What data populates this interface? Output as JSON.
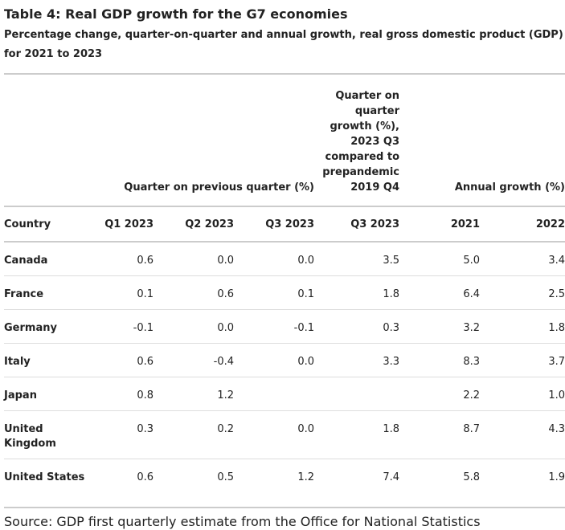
{
  "title": "Table 4: Real GDP growth for the G7 economies",
  "subtitle": "Percentage change, quarter-on-quarter and annual growth, real gross domestic product (GDP) for 2021 to 2023",
  "group_headers": {
    "quarter_on_previous": "Quarter on previous quarter (%)",
    "compared_prepandemic": "Quarter on quarter growth (%), 2023 Q3 compared to prepandemic 2019 Q4",
    "annual_growth": "Annual growth (%)"
  },
  "columns": [
    "Country",
    "Q1 2023",
    "Q2 2023",
    "Q3 2023",
    "Q3 2023",
    "2021",
    "2022"
  ],
  "rows": [
    {
      "country": "Canada",
      "values": [
        "0.6",
        "0.0",
        "0.0",
        "3.5",
        "5.0",
        "3.4"
      ]
    },
    {
      "country": "France",
      "values": [
        "0.1",
        "0.6",
        "0.1",
        "1.8",
        "6.4",
        "2.5"
      ]
    },
    {
      "country": "Germany",
      "values": [
        "-0.1",
        "0.0",
        "-0.1",
        "0.3",
        "3.2",
        "1.8"
      ]
    },
    {
      "country": "Italy",
      "values": [
        "0.6",
        "-0.4",
        "0.0",
        "3.3",
        "8.3",
        "3.7"
      ]
    },
    {
      "country": "Japan",
      "values": [
        "0.8",
        "1.2",
        "",
        "",
        "2.2",
        "1.0"
      ]
    },
    {
      "country": "United Kingdom",
      "values": [
        "0.3",
        "0.2",
        "0.0",
        "1.8",
        "8.7",
        "4.3"
      ]
    },
    {
      "country": "United States",
      "values": [
        "0.6",
        "0.5",
        "1.2",
        "7.4",
        "5.8",
        "1.9"
      ]
    }
  ],
  "source": "Source: GDP first quarterly estimate from the Office for National Statistics"
}
